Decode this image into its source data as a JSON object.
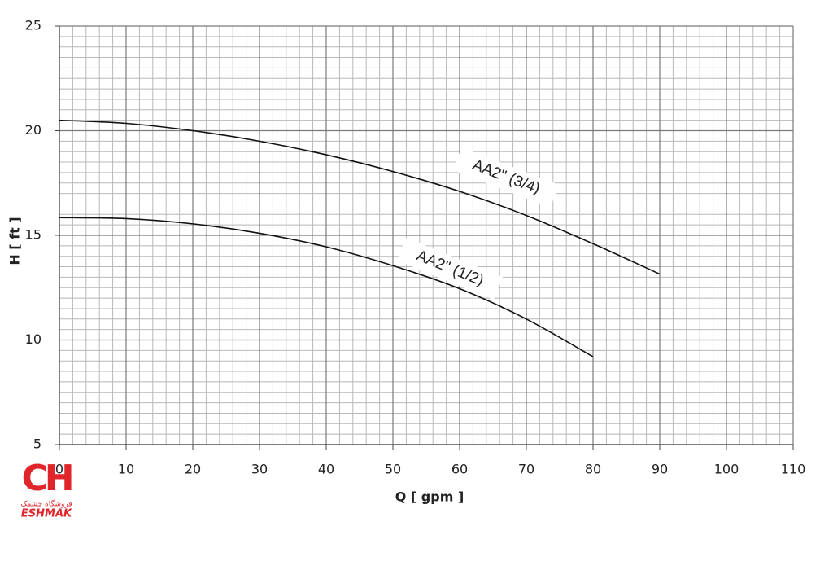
{
  "chart_data": {
    "type": "line",
    "x_label": "Q [ gpm ]",
    "y_label": "H [ ft ]",
    "x": [
      0,
      10,
      20,
      30,
      40,
      50,
      60,
      70,
      80,
      90
    ],
    "series": [
      {
        "name": "AA2\" (3/4)",
        "color": "#111111",
        "values": [
          20.5,
          20.35,
          20.0,
          19.5,
          18.85,
          18.05,
          17.1,
          15.95,
          14.6,
          13.15
        ]
      },
      {
        "name": "AA2\" (1/2)",
        "color": "#111111",
        "values": [
          15.85,
          15.8,
          15.55,
          15.1,
          14.45,
          13.55,
          12.45,
          11.0,
          9.2,
          null
        ]
      }
    ],
    "xlim": [
      0,
      110
    ],
    "xticks": [
      0,
      10,
      20,
      30,
      40,
      50,
      60,
      70,
      80,
      90,
      100,
      110
    ],
    "ylim": [
      5,
      25
    ],
    "yticks": [
      5,
      10,
      15,
      20,
      25
    ],
    "grid": true
  },
  "logo": {
    "mark": "CH",
    "persian": "فروشگاه چشمک",
    "brand": "ESHMAK"
  }
}
